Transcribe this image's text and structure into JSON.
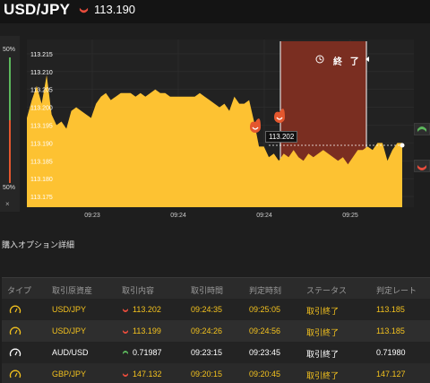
{
  "header": {
    "pair": "USD/JPY",
    "price": "113.190",
    "direction_icon": "down-arrow-icon",
    "down_color": "#e74c3c",
    "up_color": "#5cb85c"
  },
  "meter": {
    "top_label": "50%",
    "bottom_label": "50%",
    "close_label": "×"
  },
  "chart": {
    "finish_label": "終 了",
    "current_price_tag": "113.202",
    "accent_fill": "#fdc232",
    "expiry_zone_color": "#7a2e21"
  },
  "chart_data": {
    "type": "area",
    "series": [
      {
        "values": [
          113.197,
          113.202,
          113.206,
          113.201,
          113.209,
          113.198,
          113.195,
          113.196,
          113.194,
          113.199,
          113.2,
          113.199,
          113.198,
          113.197,
          113.201,
          113.203,
          113.204,
          113.202,
          113.203,
          113.204,
          113.204,
          113.204,
          113.203,
          113.204,
          113.203,
          113.204,
          113.205,
          113.204,
          113.204,
          113.203,
          113.203,
          113.203,
          113.203,
          113.203,
          113.203,
          113.204,
          113.203,
          113.202,
          113.201,
          113.2,
          113.201,
          113.199,
          113.203,
          113.201,
          113.201,
          113.202,
          113.196,
          113.189,
          113.189,
          113.186,
          113.187,
          113.185,
          113.187,
          113.186,
          113.188,
          113.186,
          113.185,
          113.187,
          113.186,
          113.187,
          113.188,
          113.187,
          113.186,
          113.185,
          113.186,
          113.184,
          113.186,
          113.188,
          113.188,
          113.189,
          113.188,
          113.19,
          113.19,
          113.185,
          113.188,
          113.19,
          113.19
        ]
      }
    ],
    "x_tick_labels": [
      "09:23",
      "09:24",
      "09:24",
      "09:25"
    ],
    "y_tick_labels": [
      "113.215",
      "113.210",
      "113.205",
      "113.200",
      "113.195",
      "113.190",
      "113.185",
      "113.180",
      "113.175"
    ],
    "ylim": [
      113.172,
      113.219
    ],
    "grid": true
  },
  "details": {
    "title": "購入オプション詳細",
    "columns": [
      "タイプ",
      "取引原資産",
      "取引内容",
      "取引時間",
      "判定時刻",
      "ステータス",
      "判定レート"
    ],
    "rows": [
      {
        "type_icon": "gauge-icon",
        "asset": "USD/JPY",
        "dir": "down",
        "rate": "113.202",
        "time": "09:24:35",
        "judge": "09:25:05",
        "status": "取引終了",
        "result": "113.185"
      },
      {
        "type_icon": "gauge-icon",
        "asset": "USD/JPY",
        "dir": "down",
        "rate": "113.199",
        "time": "09:24:26",
        "judge": "09:24:56",
        "status": "取引終了",
        "result": "113.185"
      },
      {
        "type_icon": "gauge-icon",
        "asset": "AUD/USD",
        "dir": "up",
        "rate": "0.71987",
        "time": "09:23:15",
        "judge": "09:23:45",
        "status": "取引終了",
        "result": "0.71980"
      },
      {
        "type_icon": "gauge-icon",
        "asset": "GBP/JPY",
        "dir": "down",
        "rate": "147.132",
        "time": "09:20:15",
        "judge": "09:20:45",
        "status": "取引終了",
        "result": "147.127"
      }
    ]
  }
}
